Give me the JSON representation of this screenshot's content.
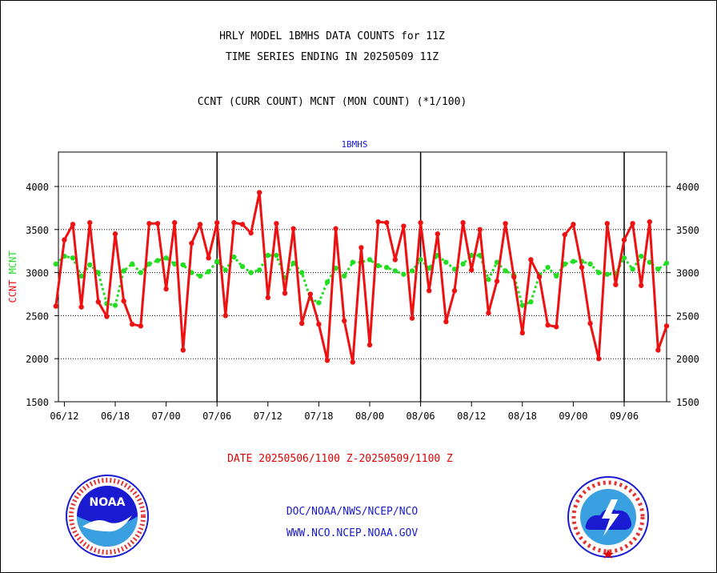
{
  "header": {
    "line1": "HRLY MODEL 1BMHS DATA COUNTS for 11Z",
    "line2": "TIME SERIES ENDING IN 20250509 11Z",
    "line3": "CCNT (CURR COUNT) MCNT (MON COUNT) (*1/100)"
  },
  "footer": {
    "date_range": "DATE 20250506/1100 Z-20250509/1100 Z",
    "org": "DOC/NOAA/NWS/NCEP/NCO",
    "url": "WWW.NCO.NCEP.NOAA.GOV"
  },
  "logos": {
    "left": "noaa-logo",
    "left_text": "NOAA",
    "right": "national-weather-service-logo",
    "right_text": "NATIONAL WEATHER SERVICE"
  },
  "colors": {
    "ccnt": "#ee1111",
    "mcnt": "#22dd22",
    "axis": "#000000",
    "plot_title": "#1a1ad0"
  },
  "chart_data": {
    "type": "line",
    "title": "1BMHS",
    "ylabel_left": [
      "CCNT",
      "MCNT"
    ],
    "x_ticks": [
      "06/12",
      "06/18",
      "07/00",
      "07/06",
      "07/12",
      "07/18",
      "08/00",
      "08/06",
      "08/12",
      "08/18",
      "09/00",
      "09/06"
    ],
    "x_tick_index": [
      1,
      7,
      13,
      19,
      25,
      31,
      37,
      43,
      49,
      55,
      61,
      67
    ],
    "x_range": [
      0.3,
      72
    ],
    "day_boundaries": [
      19,
      43,
      67
    ],
    "ylim": [
      1500,
      4400
    ],
    "yticks": [
      1500,
      2000,
      2500,
      3000,
      3500,
      4000
    ],
    "grid": "horizontal dotted at 2000-4000",
    "series": [
      {
        "name": "CCNT",
        "values": [
          2610,
          3380,
          3560,
          2600,
          3580,
          2660,
          2490,
          3450,
          2670,
          2400,
          2380,
          3570,
          3570,
          2810,
          3580,
          2100,
          3340,
          3560,
          3170,
          3580,
          2500,
          3580,
          3560,
          3460,
          3930,
          2710,
          3570,
          2760,
          3510,
          2410,
          2750,
          2400,
          1980,
          3510,
          2440,
          1960,
          3290,
          2160,
          3590,
          3580,
          3150,
          3540,
          2470,
          3580,
          2790,
          3450,
          2430,
          2790,
          3580,
          3030,
          3500,
          2530,
          2900,
          3570,
          2950,
          2300,
          3150,
          2950,
          2390,
          2370,
          3440,
          3560,
          3060,
          2410,
          2000,
          3570,
          2860,
          3380,
          3570,
          2850,
          3590,
          2100,
          2380
        ]
      },
      {
        "name": "MCNT",
        "values": [
          3100,
          3190,
          3170,
          2960,
          3090,
          3000,
          2640,
          2620,
          3020,
          3100,
          3000,
          3100,
          3140,
          3170,
          3100,
          3090,
          3000,
          2960,
          3010,
          3130,
          3030,
          3180,
          3070,
          3000,
          3030,
          3200,
          3200,
          2940,
          3110,
          3000,
          2700,
          2650,
          2890,
          3050,
          2960,
          3120,
          3120,
          3150,
          3080,
          3060,
          3020,
          2980,
          3020,
          3150,
          3050,
          3200,
          3120,
          3040,
          3100,
          3200,
          3200,
          2920,
          3120,
          3020,
          2970,
          2620,
          2660,
          2970,
          3060,
          2960,
          3100,
          3130,
          3130,
          3100,
          3000,
          2980,
          2990,
          3170,
          3040,
          3190,
          3120,
          3040,
          3110
        ]
      }
    ]
  }
}
